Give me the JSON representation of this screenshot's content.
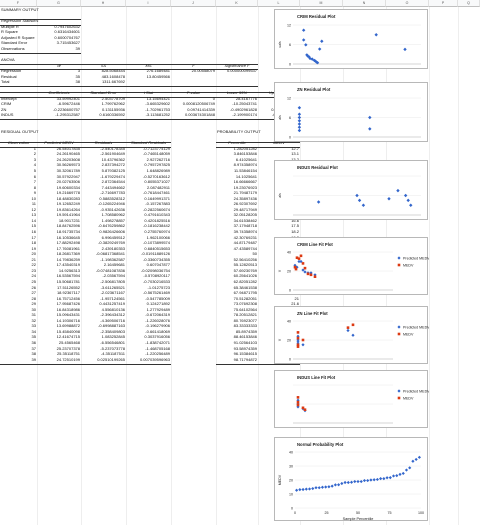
{
  "columns": [
    "F",
    "G",
    "H",
    "I",
    "J",
    "K",
    "L",
    "M",
    "N",
    "O",
    "P",
    "Q",
    "R"
  ],
  "summary": {
    "title": "SUMMARY OUTPUT",
    "reg_stats_title": "Regression Statistics",
    "rows": [
      [
        "Multiple R",
        "0.7947602632"
      ],
      [
        "R Square",
        "0.6316434601"
      ],
      [
        "Adjusted R Square",
        "0.6000704767"
      ],
      [
        "Standard Error",
        "3.715453627"
      ],
      [
        "Observations",
        "39"
      ]
    ]
  },
  "anova": {
    "title": "ANOVA",
    "headers": [
      "",
      "df",
      "SS",
      "MS",
      "F",
      "Significance F"
    ],
    "rows": [
      [
        "Regression",
        "3",
        "828.5068444",
        "276.1689481",
        "20.00558079",
        "0.000000099537"
      ],
      [
        "Residual",
        "35",
        "483.1608478",
        "13.80459566",
        "",
        ""
      ],
      [
        "Total",
        "38",
        "1311.667692",
        "",
        "",
        ""
      ]
    ]
  },
  "coef": {
    "headers": [
      "",
      "Coefficients",
      "Standard Error",
      "t Stat",
      "P-value",
      "Lower 95%",
      "Upper 95%"
    ],
    "rows": [
      [
        "Intercept",
        "33.59992401",
        "2.503778709",
        "13.15694421",
        "0",
        "28.4167776",
        "38.78437026"
      ],
      [
        "CRIM",
        "-6.59672446",
        "1.799762962",
        "-3.665329602",
        "0.0008120506749",
        "-10.25043741",
        "-2.943011517"
      ],
      [
        "ZN",
        "-0.2236600757",
        "0.131155936",
        "-1.702961753",
        "0.09741414339",
        "-0.4902961828",
        "0.04296604134"
      ],
      [
        "INDUS",
        "-1.295312587",
        "0.6160336592",
        "-3.113681252",
        "0.003674301848",
        "-2.199900174",
        "-0.4507197998"
      ]
    ]
  },
  "residual": {
    "title": "RESIDUAL OUTPUT",
    "headers": [
      "Observation",
      "Predicted MEDV",
      "Residuals",
      "Standard Residuals"
    ],
    "rows": [
      [
        "1",
        "26.54017835",
        "-2.540178345",
        "-0.7123774129"
      ],
      [
        "2",
        "24.26190465",
        "-2.561904649",
        "-0.7465148059"
      ],
      [
        "3",
        "24.26203608",
        "10.43796362",
        "2.927262716"
      ],
      [
        "4",
        "30.56269573",
        "2.837394272",
        "0.7957297825"
      ],
      [
        "5",
        "30.32061789",
        "5.879382125",
        "1.648826989"
      ],
      [
        "6",
        "30.57922947",
        "-1.679229474",
        "-0.5270163612"
      ],
      [
        "7",
        "20.02763506",
        "2.872364544",
        "0.8055371027"
      ],
      [
        "8",
        "19.60600334",
        "7.443494662",
        "2.087482911"
      ],
      [
        "9",
        "19.21669778",
        "-2.716697783",
        "-0.7618447461"
      ],
      [
        "10",
        "18.48830283",
        "0.5883528312",
        "0.1649991371"
      ],
      [
        "11",
        "19.12652249",
        "-0.1265224946",
        "-0.157267883"
      ],
      [
        "12",
        "19.83614264",
        "-0.935142636",
        "-0.2822560674"
      ],
      [
        "13",
        "19.59141964",
        "1.708580962",
        "0.4791610343"
      ],
      [
        "14",
        "18.9017231",
        "1.498278857",
        "0.4201825516"
      ],
      [
        "15",
        "18.84762596",
        "-0.6476259862",
        "-0.1816238442"
      ],
      [
        "16",
        "18.91735734",
        "0.9826426606",
        "0.2755760974"
      ],
      [
        "17",
        "16.10536645",
        "6.996459512",
        "1.962100066"
      ],
      [
        "18",
        "17.88292498",
        "-0.3829249769",
        "-0.1073899574"
      ],
      [
        "19",
        "17.76081961",
        "2.439180353",
        "0.6840515653"
      ],
      [
        "20",
        "18.26817369",
        "-0.06817368541",
        "-0.01911889126"
      ],
      [
        "21",
        "14.79836259",
        "-1.198362587",
        "-0.3360734355"
      ],
      [
        "22",
        "17.43540319",
        "2.16459681",
        "0.607047877"
      ],
      [
        "23",
        "14.9256313",
        "-0.07481087836",
        "-0.02098036754"
      ],
      [
        "24",
        "16.53567594",
        "-2.03567594",
        "-0.5708920117"
      ],
      [
        "25",
        "15.50681781",
        "-2.506817805",
        "-0.7030216533"
      ],
      [
        "26",
        "17.51126552",
        "-3.611265521",
        "-1.01275723"
      ],
      [
        "27",
        "18.92367117",
        "-2.023671167",
        "-0.5675261469"
      ],
      [
        "28",
        "16.75712456",
        "-1.957124561",
        "-0.547785009"
      ],
      [
        "29",
        "17.95687426",
        "0.4431257419",
        "0.124271892"
      ],
      [
        "30",
        "16.84318986",
        "4.556810136",
        "1.277929489"
      ],
      [
        "31",
        "15.09643431",
        "-2.396434312",
        "-0.672064319"
      ],
      [
        "32",
        "14.19306716",
        "-4.369506716",
        "-1.226028076"
      ],
      [
        "33",
        "13.69988872",
        "-0.6998887163",
        "-0.196279906"
      ],
      [
        "34",
        "15.45840098",
        "-2.358409803",
        "-0.661418069"
      ],
      [
        "35",
        "12.41674715",
        "1.083252845",
        "0.3037916056"
      ],
      [
        "36",
        "25.4565468",
        "-6.556546801",
        "-1.838742071"
      ],
      [
        "37",
        "25.23707378",
        "-5.237073778",
        "-1.468705168"
      ],
      [
        "38",
        "25.35118751",
        "-4.351187511",
        "-1.220256489"
      ],
      [
        "39",
        "24.72510199",
        "0.02510199265",
        "0.007039596963"
      ]
    ]
  },
  "probability": {
    "title": "PROBABILITY OUTPUT",
    "headers": [
      "Percentile",
      "MEDV"
    ],
    "rows": [
      [
        "1.282051282",
        "12.7"
      ],
      [
        "3.846153846",
        "13.1"
      ],
      [
        "6.41025641",
        "13.2"
      ],
      [
        "8.974358974",
        "13.5"
      ],
      [
        "11.53846154",
        "13.6"
      ],
      [
        "14.1025641",
        "13.9"
      ],
      [
        "16.66666667",
        "14.5"
      ],
      [
        "19.23076923",
        "14.5"
      ],
      [
        "21.79487179",
        "14.8"
      ],
      [
        "24.35897436",
        "15"
      ],
      [
        "26.92307692",
        "15.2"
      ],
      [
        "29.48717949",
        "15.6"
      ],
      [
        "32.05128205",
        "16.5"
      ],
      [
        "34.61538462",
        "16.6"
      ],
      [
        "37.17948718",
        "17.5"
      ],
      [
        "39.74358974",
        "18.2"
      ],
      [
        "42.30769231",
        "18.2"
      ],
      [
        "44.87179487",
        "18.4"
      ],
      [
        "47.43589744",
        "18.9"
      ],
      [
        "50",
        "18.9"
      ],
      [
        "52.56410256",
        "18.9"
      ],
      [
        "55.12820513",
        "19.6"
      ],
      [
        "57.69230769",
        "19.6"
      ],
      [
        "60.25641026",
        "20"
      ],
      [
        "62.82051282",
        "20.2"
      ],
      [
        "65.38461538",
        "20.4"
      ],
      [
        "67.94871795",
        "21"
      ],
      [
        "70.51282051",
        "21"
      ],
      [
        "73.07692308",
        "21.6"
      ],
      [
        "75.64102564",
        "21.7"
      ],
      [
        "78.20512821",
        "22.9"
      ],
      [
        "80.76923077",
        "23.1"
      ],
      [
        "83.33333333",
        "24"
      ],
      [
        "85.8974359",
        "24.7"
      ],
      [
        "88.46153846",
        "27.1"
      ],
      [
        "91.02564103",
        "28.7"
      ],
      [
        "93.58974359",
        "33.4"
      ],
      [
        "96.15384615",
        "34.7"
      ],
      [
        "98.71794872",
        "36.2"
      ]
    ]
  },
  "charts": {
    "residual_plots": [
      {
        "title": "CRIM Residual Plot",
        "ylabel": "uals",
        "ylim": [
          0,
          12
        ],
        "yticks": [
          "12",
          "6",
          "0"
        ],
        "points": [
          [
            0.1,
            10.4
          ],
          [
            0.1,
            7.4
          ],
          [
            0.12,
            5.9
          ],
          [
            0.13,
            2.8
          ],
          [
            0.14,
            2.4
          ],
          [
            0.15,
            2.2
          ],
          [
            0.16,
            1.7
          ],
          [
            0.18,
            1.5
          ],
          [
            0.2,
            1.1
          ],
          [
            0.21,
            0.9
          ],
          [
            0.22,
            0.6
          ],
          [
            0.23,
            0.4
          ],
          [
            0.25,
            4.6
          ],
          [
            0.27,
            7.0
          ],
          [
            0.78,
            9.0
          ],
          [
            1.05,
            4.5
          ]
        ],
        "xmax": 1.2
      },
      {
        "title": "ZN Residual Plot",
        "ylabel": "als",
        "ylim": [
          0,
          12
        ],
        "yticks": [
          "12",
          "6",
          "0"
        ],
        "points": [
          [
            0.05,
            9.0
          ],
          [
            0.05,
            7.0
          ],
          [
            0.05,
            6.0
          ],
          [
            0.05,
            5.0
          ],
          [
            0.05,
            4.0
          ],
          [
            0.05,
            3.0
          ],
          [
            0.05,
            2.0
          ],
          [
            0.6,
            6.0
          ],
          [
            0.6,
            2.5
          ]
        ],
        "xmax": 1.0
      },
      {
        "title": "INDUS Residual Plot",
        "ylabel": "als",
        "ylim": [
          0,
          12
        ],
        "yticks": [
          "",
          "",
          ""
        ],
        "points": [
          [
            0.2,
            4.0
          ],
          [
            0.5,
            6.0
          ],
          [
            0.52,
            4.5
          ],
          [
            0.55,
            3.0
          ],
          [
            0.75,
            5.0
          ],
          [
            0.82,
            7.5
          ],
          [
            0.88,
            6.0
          ],
          [
            0.9,
            4.5
          ],
          [
            0.92,
            3.0
          ]
        ],
        "xmax": 1.0
      }
    ],
    "line_fit_plots": [
      {
        "title": "CRIM Line Fit Plot",
        "ylabel": "V",
        "ylim": [
          0,
          40
        ],
        "yticks": [
          "40",
          "20",
          "0"
        ],
        "legend": [
          "Predicted MEDV",
          "MEDV"
        ],
        "predicted": [
          [
            0.02,
            26
          ],
          [
            0.03,
            24
          ],
          [
            0.04,
            24
          ],
          [
            0.06,
            30
          ],
          [
            0.08,
            30
          ],
          [
            0.1,
            21
          ],
          [
            0.12,
            19
          ],
          [
            0.15,
            18
          ],
          [
            0.18,
            18
          ],
          [
            0.22,
            16
          ]
        ],
        "actual": [
          [
            0.02,
            24
          ],
          [
            0.03,
            22
          ],
          [
            0.04,
            34
          ],
          [
            0.06,
            33
          ],
          [
            0.08,
            36
          ],
          [
            0.1,
            28
          ],
          [
            0.12,
            23
          ],
          [
            0.15,
            17
          ],
          [
            0.18,
            16
          ],
          [
            0.22,
            14
          ]
        ]
      },
      {
        "title": "ZN Line Fit Plot",
        "ylabel": "V",
        "ylim": [
          0,
          40
        ],
        "yticks": [
          "40",
          "20",
          "0"
        ],
        "legend": [
          "Predicted MEDV",
          "MEDV"
        ],
        "predicted": [
          [
            0.05,
            24
          ],
          [
            0.05,
            20
          ],
          [
            0.05,
            18
          ],
          [
            0.05,
            16
          ],
          [
            0.1,
            15
          ],
          [
            0.55,
            30
          ],
          [
            0.6,
            25
          ]
        ],
        "actual": [
          [
            0.05,
            22
          ],
          [
            0.05,
            28
          ],
          [
            0.05,
            15
          ],
          [
            0.05,
            13
          ],
          [
            0.1,
            20
          ],
          [
            0.55,
            33
          ],
          [
            0.6,
            36
          ]
        ]
      },
      {
        "title": "INDUS Line Fit Plot",
        "ylabel": "",
        "ylim": [
          0,
          40
        ],
        "yticks": [
          "",
          "",
          ""
        ],
        "legend": [
          "Predicted MEDV",
          "MEDV"
        ],
        "predicted": [
          [
            0.05,
            24
          ],
          [
            0.05,
            20
          ],
          [
            0.05,
            17
          ],
          [
            0.1,
            15
          ],
          [
            0.12,
            13
          ]
        ],
        "actual": [
          [
            0.05,
            27
          ],
          [
            0.05,
            22
          ],
          [
            0.05,
            19
          ],
          [
            0.1,
            16
          ],
          [
            0.12,
            14
          ]
        ]
      }
    ],
    "normal_probability": {
      "title": "Normal Probability Plot",
      "ylabel": "MEDV",
      "xlabel": "Sample Percentile",
      "yticks": [
        "40",
        "30",
        "20",
        "10",
        "0"
      ],
      "xticks": [
        "0",
        "25",
        "50",
        "75",
        "100"
      ],
      "ylim": [
        0,
        40
      ],
      "xlim": [
        0,
        100
      ]
    }
  }
}
